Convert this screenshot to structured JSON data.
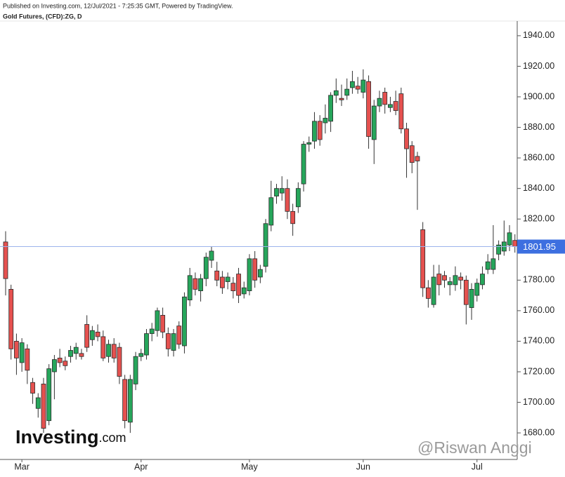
{
  "header": {
    "published": "Published on Investing.com, 12/Jul/2021 - 7:25:35 GMT, Powered by TradingView.",
    "instrument": "Gold Futures, (CFD):ZG, D"
  },
  "watermark": {
    "brand": "Investing",
    "brand_suffix": ".com",
    "author": "@Riswan Anggi"
  },
  "chart_data": {
    "type": "candlestick",
    "categories": [
      null,
      null,
      null,
      "Mar",
      null,
      null,
      null,
      null,
      null,
      null,
      null,
      null,
      null,
      null,
      null,
      null,
      null,
      null,
      null,
      null,
      null,
      null,
      null,
      null,
      null,
      "Apr",
      null,
      null,
      null,
      null,
      null,
      null,
      null,
      null,
      null,
      null,
      null,
      null,
      null,
      null,
      null,
      null,
      null,
      null,
      null,
      "May",
      null,
      null,
      null,
      null,
      null,
      null,
      null,
      null,
      null,
      null,
      null,
      null,
      null,
      null,
      null,
      null,
      null,
      null,
      null,
      null,
      "Jun",
      null,
      null,
      null,
      null,
      null,
      null,
      null,
      null,
      null,
      null,
      null,
      null,
      null,
      null,
      null,
      null,
      null,
      null,
      null,
      null,
      "Jul",
      null,
      null,
      null,
      null,
      null,
      null,
      null
    ],
    "open": [
      1805,
      1774,
      1740,
      1726,
      1735,
      1713,
      1696,
      1712,
      1688,
      1720,
      1729,
      1727,
      1730,
      1732,
      1732,
      1751,
      1741,
      1746,
      1743,
      1730,
      1738,
      1736,
      1715,
      1687,
      1712,
      1730,
      1731,
      1745,
      1747,
      1757,
      1745,
      1734,
      1750,
      1737,
      1767,
      1781,
      1773,
      1781,
      1793,
      1786,
      1782,
      1779,
      1778,
      1784,
      1771,
      1773,
      1794,
      1782,
      1789,
      1816,
      1835,
      1837,
      1840,
      1825,
      1828,
      1843,
      1869,
      1871,
      1884,
      1883,
      1884,
      1901,
      1899,
      1901,
      1906,
      1907,
      1903,
      1910,
      1872,
      1894,
      1903,
      1893,
      1897,
      1902,
      1879,
      1868,
      1861,
      1813,
      1775,
      1764,
      1784,
      1783,
      1777,
      1777,
      1782,
      1780,
      1762,
      1770,
      1777,
      1787,
      1787,
      1797,
      1799,
      1803,
      1806
    ],
    "high": [
      1812,
      1777,
      1745,
      1742,
      1738,
      1716,
      1706,
      1716,
      1725,
      1731,
      1735,
      1730,
      1737,
      1739,
      1735,
      1757,
      1750,
      1751,
      1747,
      1741,
      1742,
      1739,
      1718,
      1718,
      1733,
      1735,
      1748,
      1752,
      1762,
      1762,
      1749,
      1748,
      1753,
      1772,
      1788,
      1785,
      1784,
      1798,
      1802,
      1792,
      1786,
      1785,
      1782,
      1788,
      1779,
      1797,
      1799,
      1790,
      1820,
      1845,
      1843,
      1848,
      1846,
      1830,
      1844,
      1871,
      1874,
      1890,
      1888,
      1895,
      1903,
      1912,
      1908,
      1912,
      1917,
      1913,
      1918,
      1914,
      1898,
      1904,
      1906,
      1900,
      1904,
      1906,
      1883,
      1871,
      1864,
      1818,
      1780,
      1790,
      1790,
      1786,
      1782,
      1789,
      1785,
      1783,
      1778,
      1781,
      1789,
      1797,
      1816,
      1806,
      1819,
      1816,
      1810
    ],
    "low": [
      1770,
      1728,
      1718,
      1720,
      1712,
      1699,
      1690,
      1680,
      1685,
      1702,
      1723,
      1721,
      1726,
      1728,
      1728,
      1733,
      1737,
      1740,
      1727,
      1726,
      1726,
      1712,
      1683,
      1680,
      1708,
      1727,
      1728,
      1740,
      1743,
      1742,
      1730,
      1730,
      1735,
      1732,
      1763,
      1770,
      1766,
      1776,
      1788,
      1776,
      1771,
      1774,
      1768,
      1765,
      1768,
      1770,
      1775,
      1778,
      1785,
      1812,
      1830,
      1832,
      1820,
      1809,
      1824,
      1838,
      1864,
      1866,
      1868,
      1876,
      1877,
      1896,
      1894,
      1898,
      1902,
      1902,
      1899,
      1866,
      1856,
      1890,
      1889,
      1890,
      1888,
      1876,
      1847,
      1850,
      1826,
      1769,
      1762,
      1762,
      1770,
      1775,
      1770,
      1773,
      1774,
      1751,
      1754,
      1766,
      1774,
      1784,
      1784,
      1793,
      1796,
      1799,
      1798
    ],
    "close": [
      1781,
      1735,
      1729,
      1739,
      1721,
      1706,
      1703,
      1683,
      1722,
      1728,
      1726,
      1724,
      1734,
      1736,
      1730,
      1736,
      1747,
      1743,
      1729,
      1738,
      1729,
      1717,
      1688,
      1715,
      1730,
      1732,
      1745,
      1748,
      1760,
      1746,
      1735,
      1745,
      1738,
      1769,
      1783,
      1774,
      1781,
      1795,
      1799,
      1780,
      1775,
      1782,
      1773,
      1770,
      1775,
      1794,
      1780,
      1787,
      1817,
      1834,
      1840,
      1840,
      1825,
      1817,
      1840,
      1869,
      1870,
      1884,
      1872,
      1886,
      1901,
      1904,
      1898,
      1905,
      1910,
      1905,
      1911,
      1874,
      1894,
      1899,
      1895,
      1895,
      1891,
      1879,
      1866,
      1857,
      1858,
      1775,
      1768,
      1782,
      1777,
      1780,
      1779,
      1783,
      1780,
      1764,
      1774,
      1778,
      1784,
      1792,
      1794,
      1803,
      1805,
      1811,
      1801.95
    ],
    "up_color": "#26a65b",
    "down_color": "#e5514f",
    "last_price": 1801.95,
    "last_price_color": "#3d6fe0",
    "ylim": [
      1662.6,
      1949.6
    ],
    "yticks": [
      {
        "value": 1680,
        "label": "1680.00"
      },
      {
        "value": 1700,
        "label": "1700.00"
      },
      {
        "value": 1720,
        "label": "1720.00"
      },
      {
        "value": 1740,
        "label": "1740.00"
      },
      {
        "value": 1760,
        "label": "1760.00"
      },
      {
        "value": 1780,
        "label": "1780.00"
      },
      {
        "value": 1800,
        "label": "1800.00"
      },
      {
        "value": 1820,
        "label": "1820.00"
      },
      {
        "value": 1840,
        "label": "1840.00"
      },
      {
        "value": 1860,
        "label": "1860.00"
      },
      {
        "value": 1880,
        "label": "1880.00"
      },
      {
        "value": 1900,
        "label": "1900.00"
      },
      {
        "value": 1920,
        "label": "1920.00"
      },
      {
        "value": 1940,
        "label": "1940.00"
      }
    ]
  }
}
